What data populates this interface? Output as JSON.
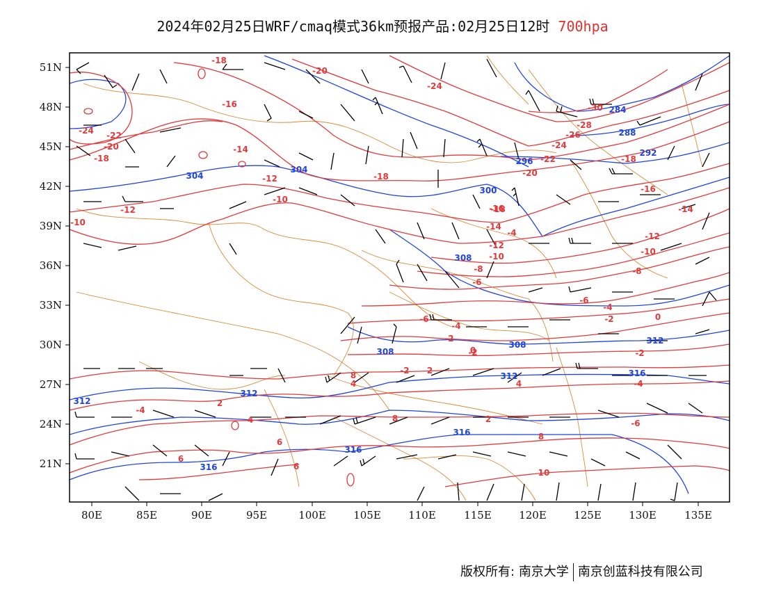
{
  "header": {
    "title": "2024年02月25日WRF/cmaq模式36km预报产品:02月25日12时",
    "level": "700hpa"
  },
  "axes": {
    "lon_ticks": [
      "80E",
      "85E",
      "90E",
      "95E",
      "100E",
      "105E",
      "110E",
      "115E",
      "120E",
      "125E",
      "130E",
      "135E"
    ],
    "lat_ticks": [
      "51N",
      "48N",
      "45N",
      "42N",
      "39N",
      "36N",
      "33N",
      "30N",
      "27N",
      "24N",
      "21N"
    ]
  },
  "colors": {
    "temperature": "#e03a3a",
    "geopotential": "#1f44e0",
    "boundaries": "#d98a3a",
    "wind_barbs": "#000000"
  },
  "temperature_labels": [
    "-18",
    "-20",
    "-24",
    "-30",
    "-16",
    "-22",
    "-24",
    "-20",
    "-18",
    "-28",
    "-26",
    "-24",
    "-22",
    "-14",
    "-12",
    "-10",
    "-18",
    "-20",
    "-18",
    "-16",
    "-14",
    "-12",
    "-10",
    "-12",
    "-10",
    "-8",
    "-6",
    "-4",
    "-2",
    "-6",
    "-4",
    "-2",
    "0",
    "-2",
    "-4",
    "-6",
    "-8",
    "-10",
    "-12",
    "-14",
    "-16",
    "-18",
    "0",
    "-2",
    "-4",
    "-4",
    "-6",
    "2",
    "4",
    "6",
    "8",
    "10",
    "2",
    "4",
    "6",
    "8",
    "-2",
    "2",
    "4",
    "6",
    "8"
  ],
  "geopotential_labels": [
    "284",
    "288",
    "292",
    "296",
    "300",
    "304",
    "304",
    "308",
    "308",
    "308",
    "312",
    "312",
    "312",
    "312",
    "316",
    "316",
    "316",
    "316"
  ],
  "footer": {
    "owner_label": "版权所有:",
    "university": "南京大学",
    "company": "南京创蓝科技有限公司"
  }
}
